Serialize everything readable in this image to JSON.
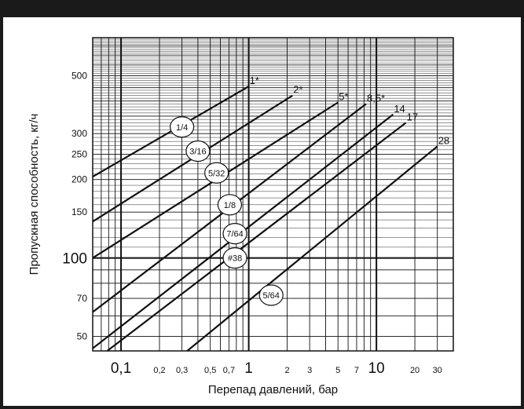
{
  "chart_data": {
    "type": "line",
    "title": "",
    "xlabel": "Перепад давлений, бар",
    "ylabel": "Пропускная способность, кг/ч",
    "xscale": "log",
    "yscale": "log",
    "xlim": [
      0.06,
      40
    ],
    "ylim": [
      44,
      700
    ],
    "grid": true,
    "legend": "none",
    "x_ticks_major": [
      {
        "value": 0.1,
        "label": "0,1"
      },
      {
        "value": 1,
        "label": "1"
      },
      {
        "value": 10,
        "label": "10"
      }
    ],
    "x_ticks_minor": [
      {
        "value": 0.2,
        "label": "0,2"
      },
      {
        "value": 0.3,
        "label": "0,3"
      },
      {
        "value": 0.5,
        "label": "0,5"
      },
      {
        "value": 0.7,
        "label": "0,7"
      },
      {
        "value": 2,
        "label": "2"
      },
      {
        "value": 3,
        "label": "3"
      },
      {
        "value": 5,
        "label": "5"
      },
      {
        "value": 7,
        "label": "7"
      },
      {
        "value": 20,
        "label": "20"
      },
      {
        "value": 30,
        "label": "30"
      }
    ],
    "y_ticks": [
      {
        "value": 50,
        "label": "50"
      },
      {
        "value": 70,
        "label": "70"
      },
      {
        "value": 100,
        "label": "100"
      },
      {
        "value": 150,
        "label": "150"
      },
      {
        "value": 200,
        "label": "200"
      },
      {
        "value": 250,
        "label": "250"
      },
      {
        "value": 300,
        "label": "300"
      },
      {
        "value": 500,
        "label": "500"
      }
    ],
    "series": [
      {
        "name": "1*",
        "x": [
          0.06,
          1.0
        ],
        "y": [
          205,
          455
        ]
      },
      {
        "name": "2*",
        "x": [
          0.06,
          2.2
        ],
        "y": [
          138,
          420
        ]
      },
      {
        "name": "5*",
        "x": [
          0.06,
          5.0
        ],
        "y": [
          100,
          395
        ]
      },
      {
        "name": "8,5*",
        "x": [
          0.06,
          8.3
        ],
        "y": [
          62,
          390
        ]
      },
      {
        "name": "14",
        "x": [
          0.06,
          13.5
        ],
        "y": [
          45,
          355
        ]
      },
      {
        "name": "17",
        "x": [
          0.078,
          17.0
        ],
        "y": [
          44,
          330
        ]
      },
      {
        "name": "28",
        "x": [
          0.33,
          30.0
        ],
        "y": [
          44,
          268
        ]
      }
    ],
    "annotations": [
      {
        "text": "1/4",
        "x": 0.3,
        "y": 318
      },
      {
        "text": "3/16",
        "x": 0.4,
        "y": 257
      },
      {
        "text": "5/32",
        "x": 0.56,
        "y": 212
      },
      {
        "text": "1/8",
        "x": 0.71,
        "y": 160
      },
      {
        "text": "7/64",
        "x": 0.78,
        "y": 124
      },
      {
        "text": "#38",
        "x": 0.78,
        "y": 100
      },
      {
        "text": "5/64",
        "x": 1.5,
        "y": 72
      }
    ]
  }
}
